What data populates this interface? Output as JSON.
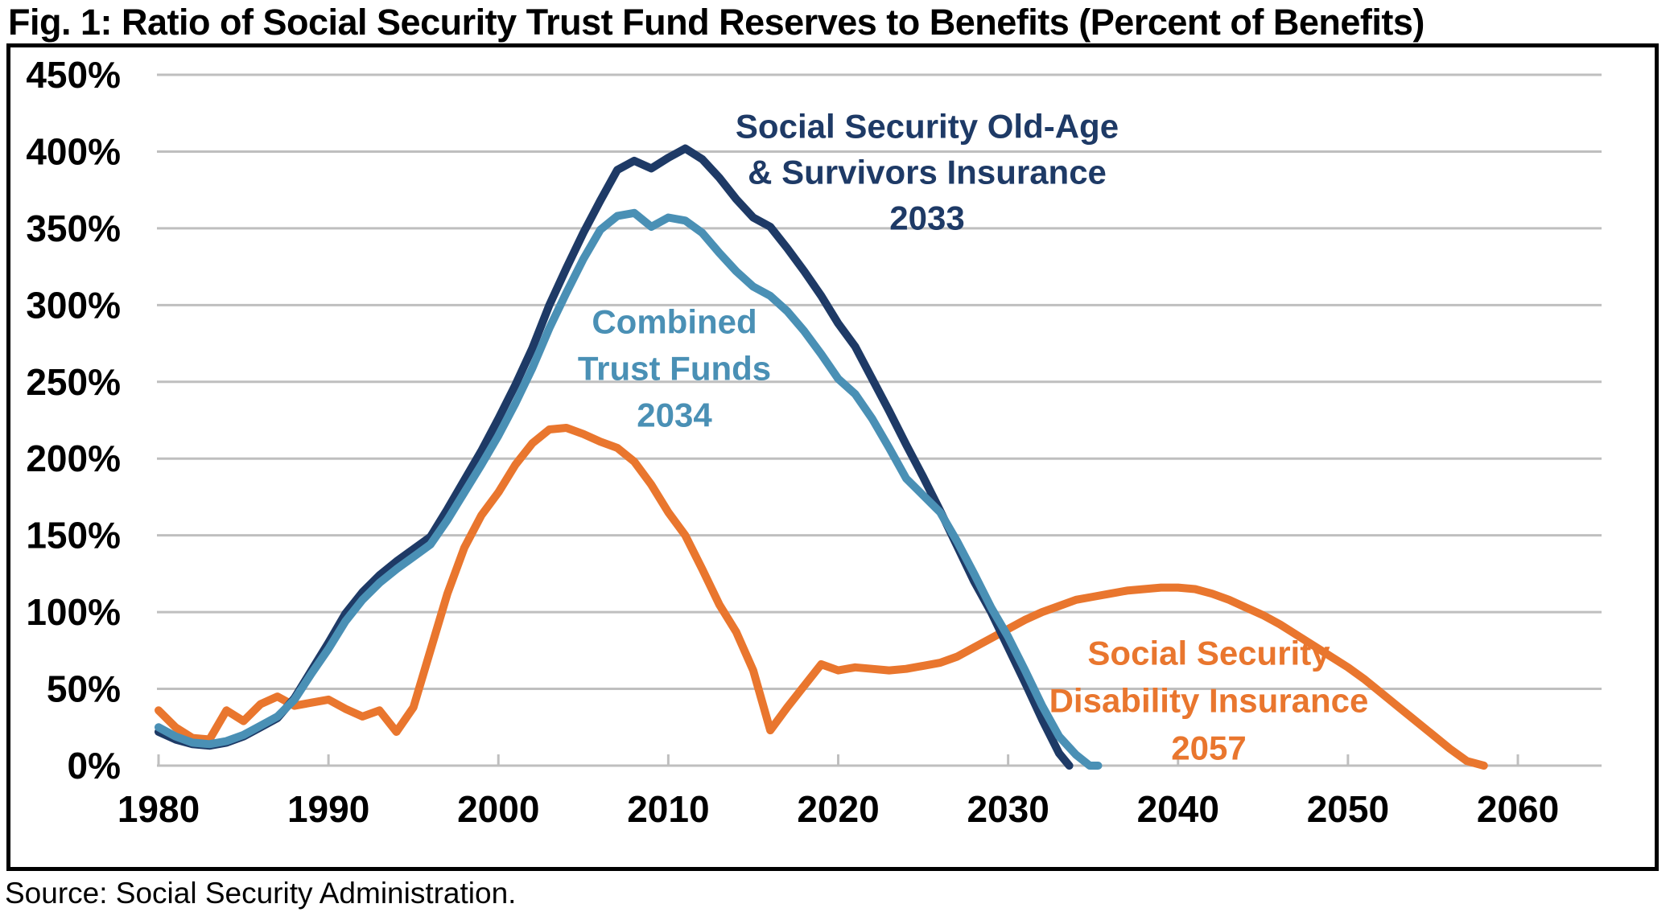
{
  "title": "Fig. 1: Ratio of Social Security Trust Fund Reserves to Benefits (Percent of Benefits)",
  "source": "Source: Social Security Administration.",
  "colors": {
    "oasi_navy": "#1E3A66",
    "combined_steel": "#4A90B5",
    "di_orange": "#E9762E",
    "gridline_gray": "#BFBFBF",
    "text_black": "#000000"
  },
  "chart_data": {
    "type": "line",
    "title": "Fig. 1: Ratio of Social Security Trust Fund Reserves to Benefits (Percent of Benefits)",
    "xlabel": "",
    "ylabel": "",
    "grid": true,
    "legend_position": "inline-annotations",
    "x_axis_years_range": [
      1980,
      2065
    ],
    "ylim_percent": [
      0,
      450
    ],
    "x_tick_labels": [
      "1980",
      "1990",
      "2000",
      "2010",
      "2020",
      "2030",
      "2040",
      "2050",
      "2060"
    ],
    "x_ticks": [
      1980,
      1990,
      2000,
      2010,
      2020,
      2030,
      2040,
      2050,
      2060
    ],
    "y_tick_labels": [
      "0%",
      "50%",
      "100%",
      "150%",
      "200%",
      "250%",
      "300%",
      "350%",
      "400%",
      "450%"
    ],
    "y_ticks": [
      0,
      50,
      100,
      150,
      200,
      250,
      300,
      350,
      400,
      450
    ],
    "series": [
      {
        "name": "Social Security Disability Insurance",
        "depletion_year_label": "2057",
        "color": "#E9762E",
        "points": [
          [
            1980,
            36
          ],
          [
            1981,
            25
          ],
          [
            1982,
            18
          ],
          [
            1983,
            17
          ],
          [
            1984,
            36
          ],
          [
            1985,
            29
          ],
          [
            1986,
            40
          ],
          [
            1987,
            45
          ],
          [
            1988,
            39
          ],
          [
            1989,
            41
          ],
          [
            1990,
            43
          ],
          [
            1991,
            37
          ],
          [
            1992,
            32
          ],
          [
            1993,
            36
          ],
          [
            1994,
            22
          ],
          [
            1995,
            38
          ],
          [
            1996,
            75
          ],
          [
            1997,
            112
          ],
          [
            1998,
            142
          ],
          [
            1999,
            163
          ],
          [
            2000,
            178
          ],
          [
            2001,
            196
          ],
          [
            2002,
            210
          ],
          [
            2003,
            219
          ],
          [
            2004,
            220
          ],
          [
            2005,
            216
          ],
          [
            2006,
            211
          ],
          [
            2007,
            207
          ],
          [
            2008,
            198
          ],
          [
            2009,
            183
          ],
          [
            2010,
            165
          ],
          [
            2011,
            150
          ],
          [
            2012,
            128
          ],
          [
            2013,
            105
          ],
          [
            2014,
            87
          ],
          [
            2015,
            62
          ],
          [
            2016,
            23
          ],
          [
            2017,
            38
          ],
          [
            2018,
            52
          ],
          [
            2019,
            66
          ],
          [
            2020,
            62
          ],
          [
            2021,
            64
          ],
          [
            2022,
            63
          ],
          [
            2023,
            62
          ],
          [
            2024,
            63
          ],
          [
            2025,
            65
          ],
          [
            2026,
            67
          ],
          [
            2027,
            71
          ],
          [
            2028,
            77
          ],
          [
            2029,
            83
          ],
          [
            2030,
            89
          ],
          [
            2031,
            95
          ],
          [
            2032,
            100
          ],
          [
            2033,
            104
          ],
          [
            2034,
            108
          ],
          [
            2035,
            110
          ],
          [
            2036,
            112
          ],
          [
            2037,
            114
          ],
          [
            2038,
            115
          ],
          [
            2039,
            116
          ],
          [
            2040,
            116
          ],
          [
            2041,
            115
          ],
          [
            2042,
            112
          ],
          [
            2043,
            108
          ],
          [
            2044,
            103
          ],
          [
            2045,
            98
          ],
          [
            2046,
            92
          ],
          [
            2047,
            85
          ],
          [
            2048,
            78
          ],
          [
            2049,
            71
          ],
          [
            2050,
            64
          ],
          [
            2051,
            56
          ],
          [
            2052,
            47
          ],
          [
            2053,
            38
          ],
          [
            2054,
            29
          ],
          [
            2055,
            20
          ],
          [
            2056,
            11
          ],
          [
            2057,
            3
          ],
          [
            2058,
            0
          ]
        ]
      },
      {
        "name": "Social Security Old-Age & Survivors Insurance",
        "depletion_year_label": "2033",
        "color": "#1E3A66",
        "points": [
          [
            1980,
            22
          ],
          [
            1981,
            17
          ],
          [
            1982,
            14
          ],
          [
            1983,
            13
          ],
          [
            1984,
            15
          ],
          [
            1985,
            19
          ],
          [
            1986,
            25
          ],
          [
            1987,
            31
          ],
          [
            1988,
            44
          ],
          [
            1989,
            62
          ],
          [
            1990,
            80
          ],
          [
            1991,
            99
          ],
          [
            1992,
            113
          ],
          [
            1993,
            124
          ],
          [
            1994,
            133
          ],
          [
            1995,
            141
          ],
          [
            1996,
            149
          ],
          [
            1997,
            167
          ],
          [
            1998,
            186
          ],
          [
            1999,
            205
          ],
          [
            2000,
            226
          ],
          [
            2001,
            248
          ],
          [
            2002,
            272
          ],
          [
            2003,
            300
          ],
          [
            2004,
            324
          ],
          [
            2005,
            347
          ],
          [
            2006,
            368
          ],
          [
            2007,
            388
          ],
          [
            2008,
            394
          ],
          [
            2009,
            389
          ],
          [
            2010,
            396
          ],
          [
            2011,
            402
          ],
          [
            2012,
            395
          ],
          [
            2013,
            383
          ],
          [
            2014,
            369
          ],
          [
            2015,
            357
          ],
          [
            2016,
            351
          ],
          [
            2017,
            337
          ],
          [
            2018,
            322
          ],
          [
            2019,
            306
          ],
          [
            2020,
            288
          ],
          [
            2021,
            273
          ],
          [
            2022,
            252
          ],
          [
            2023,
            231
          ],
          [
            2024,
            209
          ],
          [
            2025,
            188
          ],
          [
            2026,
            166
          ],
          [
            2027,
            143
          ],
          [
            2028,
            120
          ],
          [
            2029,
            100
          ],
          [
            2030,
            77
          ],
          [
            2031,
            54
          ],
          [
            2032,
            30
          ],
          [
            2033,
            8
          ],
          [
            2033.6,
            0
          ]
        ]
      },
      {
        "name": "Combined Trust Funds",
        "depletion_year_label": "2034",
        "color": "#4A90B5",
        "points": [
          [
            1980,
            25
          ],
          [
            1981,
            19
          ],
          [
            1982,
            15
          ],
          [
            1983,
            14
          ],
          [
            1984,
            16
          ],
          [
            1985,
            20
          ],
          [
            1986,
            26
          ],
          [
            1987,
            32
          ],
          [
            1988,
            43
          ],
          [
            1989,
            60
          ],
          [
            1990,
            76
          ],
          [
            1991,
            94
          ],
          [
            1992,
            108
          ],
          [
            1993,
            119
          ],
          [
            1994,
            128
          ],
          [
            1995,
            136
          ],
          [
            1996,
            144
          ],
          [
            1997,
            160
          ],
          [
            1998,
            178
          ],
          [
            1999,
            196
          ],
          [
            2000,
            215
          ],
          [
            2001,
            236
          ],
          [
            2002,
            259
          ],
          [
            2003,
            285
          ],
          [
            2004,
            308
          ],
          [
            2005,
            330
          ],
          [
            2006,
            349
          ],
          [
            2007,
            358
          ],
          [
            2008,
            360
          ],
          [
            2009,
            351
          ],
          [
            2010,
            357
          ],
          [
            2011,
            355
          ],
          [
            2012,
            347
          ],
          [
            2013,
            334
          ],
          [
            2014,
            322
          ],
          [
            2015,
            312
          ],
          [
            2016,
            306
          ],
          [
            2017,
            296
          ],
          [
            2018,
            283
          ],
          [
            2019,
            268
          ],
          [
            2020,
            252
          ],
          [
            2021,
            242
          ],
          [
            2022,
            226
          ],
          [
            2023,
            207
          ],
          [
            2024,
            187
          ],
          [
            2025,
            176
          ],
          [
            2026,
            165
          ],
          [
            2027,
            146
          ],
          [
            2028,
            125
          ],
          [
            2029,
            103
          ],
          [
            2030,
            84
          ],
          [
            2031,
            62
          ],
          [
            2032,
            39
          ],
          [
            2033,
            19
          ],
          [
            2034,
            7
          ],
          [
            2034.8,
            0
          ],
          [
            2035.3,
            0
          ]
        ]
      }
    ],
    "annotations": [
      {
        "lines": [
          "Social Security Old-Age",
          "& Survivors Insurance",
          "2033"
        ],
        "color": "#1E3A66",
        "series": "Social Security Old-Age & Survivors Insurance"
      },
      {
        "lines": [
          "Combined",
          "Trust Funds",
          "2034"
        ],
        "color": "#4A90B5",
        "series": "Combined Trust Funds"
      },
      {
        "lines": [
          "Social Security",
          "Disability Insurance",
          "2057"
        ],
        "color": "#E9762E",
        "series": "Social Security Disability Insurance"
      }
    ]
  }
}
